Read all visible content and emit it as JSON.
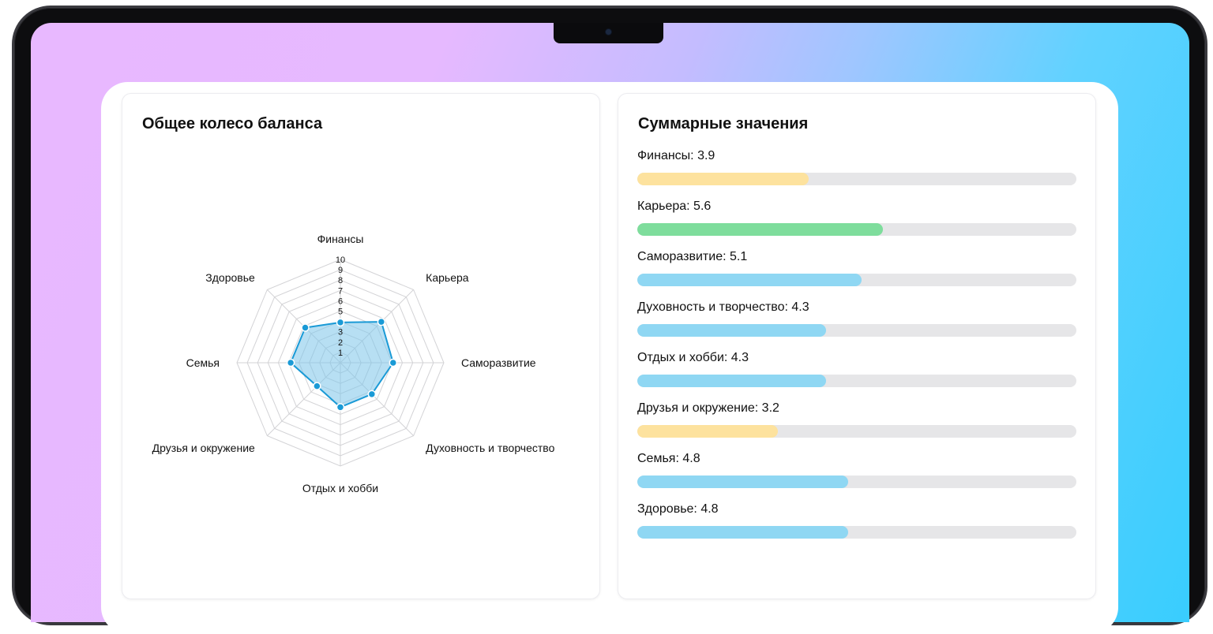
{
  "colors": {
    "radar_stroke": "#1a9ad6",
    "radar_fill": "#7cc4ea",
    "grid": "#d3d3d6",
    "bar_low": "#fde29e",
    "bar_mid": "#8fd7f3",
    "bar_high": "#7edd9c",
    "track": "#e6e6e8"
  },
  "radar_panel": {
    "title": "Общее колесо баланса"
  },
  "summary_panel": {
    "title": "Суммарные значения",
    "separator": ": "
  },
  "chart_data": {
    "type": "radar",
    "title": "Общее колесо баланса",
    "rlim": [
      0,
      10
    ],
    "ticks": [
      1,
      2,
      3,
      4,
      5,
      6,
      7,
      8,
      9,
      10
    ],
    "categories": [
      "Финансы",
      "Карьера",
      "Саморазвитие",
      "Духовность и творчество",
      "Отдых и хобби",
      "Друзья и окружение",
      "Семья",
      "Здоровье"
    ],
    "values": [
      3.9,
      5.6,
      5.1,
      4.3,
      4.3,
      3.2,
      4.8,
      4.8
    ],
    "value_labels": [
      "3.9",
      "5.6",
      "5.1",
      "4.3",
      "4.3",
      "3.2",
      "4.8",
      "4.8"
    ],
    "bar_colors": [
      "#fde29e",
      "#7edd9c",
      "#8fd7f3",
      "#8fd7f3",
      "#8fd7f3",
      "#fde29e",
      "#8fd7f3",
      "#8fd7f3"
    ],
    "bar_max": 10,
    "grid": true
  }
}
